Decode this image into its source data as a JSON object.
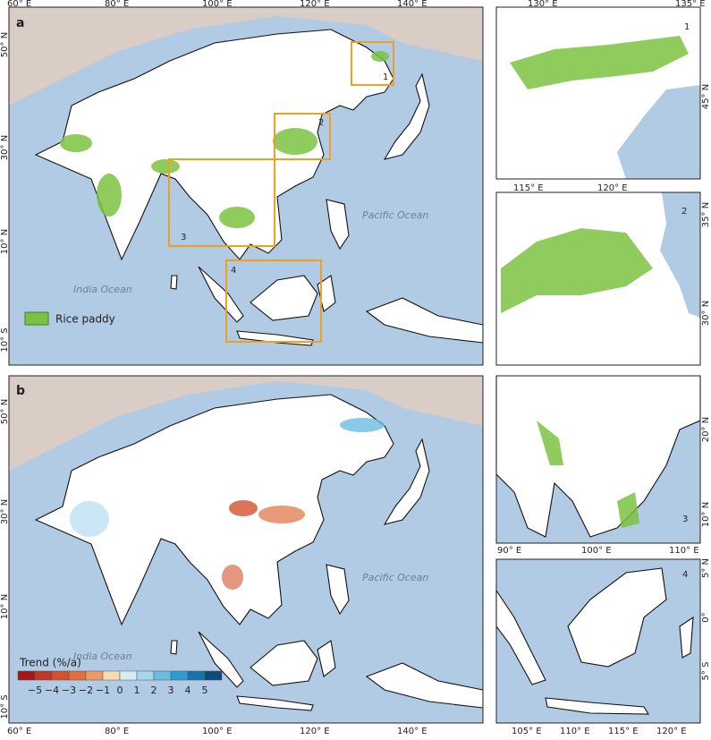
{
  "panel_a": {
    "label": "a",
    "lon_ticks": [
      "60° E",
      "80° E",
      "100° E",
      "120° E",
      "140° E"
    ],
    "lat_ticks": [
      "50° N",
      "30° N",
      "10° N",
      "10° S"
    ],
    "pacific": "Pacific Ocean",
    "indian": "India Ocean",
    "boxes": [
      "1",
      "2",
      "3",
      "4"
    ],
    "legend": "Rice paddy"
  },
  "panel_b": {
    "label": "b",
    "lon_ticks": [
      "60° E",
      "80° E",
      "100° E",
      "120° E",
      "140° E"
    ],
    "lat_ticks": [
      "50° N",
      "30° N",
      "10° N",
      "10° S"
    ],
    "pacific": "Pacific Ocean",
    "indian": "India Ocean",
    "legend": {
      "title": "Trend (%/a)",
      "labels": [
        "−5",
        "−4",
        "−3",
        "−2",
        "−1",
        "0",
        "1",
        "2",
        "3",
        "4",
        "5"
      ],
      "colors": [
        "#9e1b1b",
        "#bd3a26",
        "#d4512f",
        "#e0703f",
        "#eb9a6e",
        "#f6dcae",
        "#d8ecf6",
        "#a8d5ec",
        "#6bbde2",
        "#2f9cd0",
        "#1a73a8",
        "#0d4a7a"
      ]
    }
  },
  "inset_1": {
    "label": "1",
    "top_ticks": [
      "130° E",
      "135° E"
    ],
    "right_ticks": [
      "45° N"
    ]
  },
  "inset_2": {
    "label": "2",
    "top_ticks": [
      "115° E",
      "120° E"
    ],
    "right_ticks": [
      "35° N",
      "30° N"
    ]
  },
  "inset_3": {
    "label": "3",
    "right_ticks": [
      "20° N",
      "10° N"
    ],
    "bottom_ticks": [
      "90° E",
      "100° E",
      "110° E"
    ]
  },
  "inset_4": {
    "label": "4",
    "right_ticks": [
      "5° N",
      "0°",
      "5° S"
    ],
    "bottom_ticks": [
      "105° E",
      "110° E",
      "115° E",
      "120° E"
    ]
  }
}
